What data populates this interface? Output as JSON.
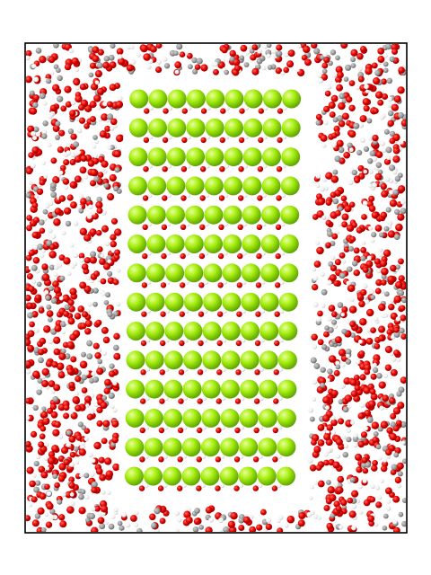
{
  "scene": {
    "subject": "molecular-dynamics-snapshot",
    "colors": {
      "background": "#ffffff",
      "frame": "#000000",
      "oxygen": "#e00000",
      "oxygen_dark": "#a80000",
      "hydrogen": "#ffffff",
      "carbon": "#9a9a9a",
      "crystal_cation": "#8ee000",
      "crystal_cation_shade": "#5fb000",
      "crystal_anion": "#c81414"
    },
    "crystal": {
      "rows": 14,
      "columns": 9,
      "tilt": "slight-left-lean"
    },
    "liquid": {
      "region": "surrounds-crystal-slab",
      "species": [
        "water-oxygen",
        "hydrogen",
        "carbon"
      ]
    }
  }
}
